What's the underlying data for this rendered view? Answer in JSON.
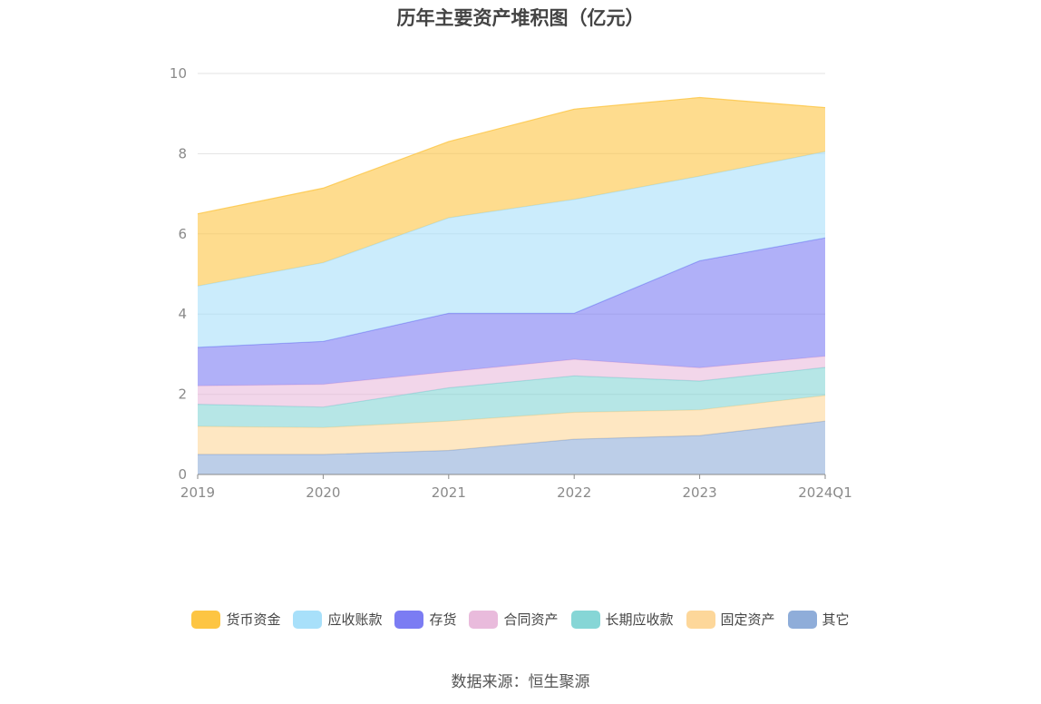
{
  "chart_data": {
    "type": "area",
    "stacked": true,
    "title": "历年主要资产堆积图（亿元）",
    "categories": [
      "2019",
      "2020",
      "2021",
      "2022",
      "2023",
      "2024Q1"
    ],
    "y_ticks": [
      "0",
      "2",
      "4",
      "6",
      "8",
      "10"
    ],
    "ylim": [
      0,
      10
    ],
    "grid": true,
    "legend_position": "bottom",
    "series": [
      {
        "name": "其它",
        "color": "#8fadd9",
        "values": [
          0.5,
          0.5,
          0.6,
          0.88,
          0.97,
          1.33
        ]
      },
      {
        "name": "固定资产",
        "color": "#fdd79a",
        "values": [
          0.7,
          0.67,
          0.73,
          0.67,
          0.64,
          0.64
        ]
      },
      {
        "name": "长期应收款",
        "color": "#86d6d6",
        "values": [
          0.55,
          0.51,
          0.83,
          0.91,
          0.72,
          0.7
        ]
      },
      {
        "name": "合同资产",
        "color": "#e9bbdc",
        "values": [
          0.46,
          0.57,
          0.4,
          0.41,
          0.33,
          0.28
        ]
      },
      {
        "name": "存货",
        "color": "#7b7cf3",
        "values": [
          0.96,
          1.07,
          1.46,
          1.15,
          2.67,
          2.95
        ]
      },
      {
        "name": "应收账款",
        "color": "#a8e0fa",
        "values": [
          1.53,
          1.96,
          2.38,
          2.84,
          2.11,
          2.15
        ]
      },
      {
        "name": "货币资金",
        "color": "#fdc543",
        "values": [
          1.8,
          1.86,
          1.9,
          2.25,
          1.96,
          1.1
        ]
      }
    ]
  },
  "source_text": "数据来源：恒生聚源"
}
